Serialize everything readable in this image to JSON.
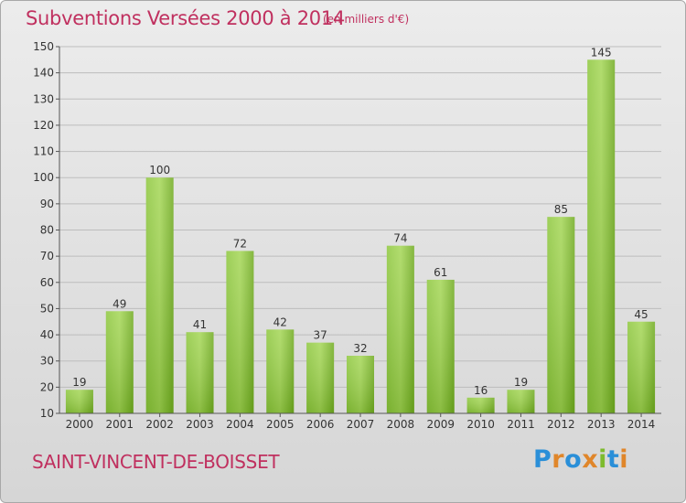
{
  "header": {
    "title": "Subventions Versées 2000 à 2014",
    "unit": "(en milliers d'€)"
  },
  "footer": {
    "commune": "SAINT-VINCENT-DE-BOISSET",
    "logo": "Proxiti"
  },
  "colors": {
    "title": "#c0305f",
    "bar_light": "#9ed14a",
    "bar_dark": "#5e9a14",
    "background": "#e4e4e4",
    "logo_letters": [
      "#2a8fd8",
      "#e0862a",
      "#2a8fd8",
      "#e0862a",
      "#7dbb2e",
      "#2a8fd8",
      "#e0862a"
    ]
  },
  "chart_data": {
    "type": "bar",
    "title": "Subventions Versées 2000 à 2014",
    "subtitle": "(en milliers d'€)",
    "xlabel": "",
    "ylabel": "",
    "categories": [
      "2000",
      "2001",
      "2002",
      "2003",
      "2004",
      "2005",
      "2006",
      "2007",
      "2008",
      "2009",
      "2010",
      "2011",
      "2012",
      "2013",
      "2014"
    ],
    "values": [
      19,
      49,
      100,
      41,
      72,
      42,
      37,
      32,
      74,
      61,
      16,
      19,
      85,
      145,
      45
    ],
    "ylim": [
      10,
      150
    ],
    "yticks": [
      10,
      20,
      30,
      40,
      50,
      60,
      70,
      80,
      90,
      100,
      110,
      120,
      130,
      140,
      150
    ],
    "grid": true,
    "data_labels": true
  }
}
